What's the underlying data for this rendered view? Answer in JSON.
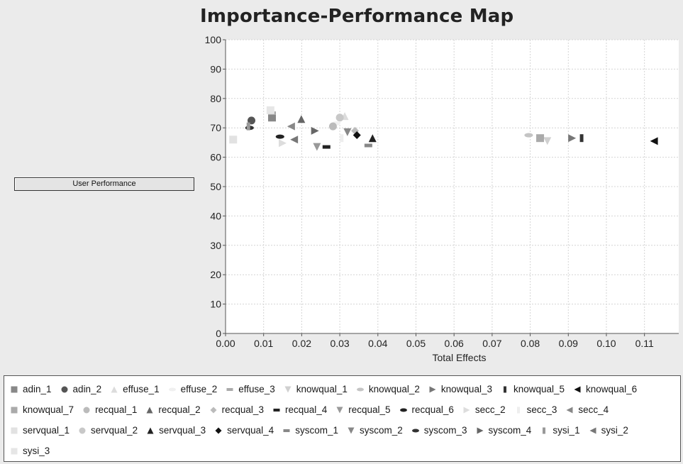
{
  "button_label": "User Performance",
  "chart_data": {
    "type": "scatter",
    "title": "Importance-Performance Map",
    "xlabel": "Total Effects",
    "ylabel": "",
    "xlim": [
      0,
      0.119
    ],
    "ylim": [
      0,
      100
    ],
    "x_ticks": [
      "0.00",
      "0.01",
      "0.02",
      "0.03",
      "0.04",
      "0.05",
      "0.06",
      "0.07",
      "0.08",
      "0.09",
      "0.10",
      "0.11"
    ],
    "y_ticks": [
      "0",
      "10",
      "20",
      "30",
      "40",
      "50",
      "60",
      "70",
      "80",
      "90",
      "100"
    ],
    "grid": true,
    "legend_position": "bottom",
    "series": [
      {
        "name": "adin_1",
        "marker": "square",
        "color": "#888888",
        "x": 0.0122,
        "y": 73.5
      },
      {
        "name": "adin_2",
        "marker": "circle",
        "color": "#555555",
        "x": 0.0068,
        "y": 72.5
      },
      {
        "name": "effuse_1",
        "marker": "triangle",
        "color": "#dcdcdc",
        "x": 0.0313,
        "y": 74.0
      },
      {
        "name": "effuse_2",
        "marker": "ellipse",
        "color": "#f0f0f0",
        "x": 0.029,
        "y": 71.5
      },
      {
        "name": "effuse_3",
        "marker": "bar",
        "color": "#aaaaaa",
        "x": 0.0122,
        "y": 75.0
      },
      {
        "name": "knowqual_1",
        "marker": "triangleDown",
        "color": "#d0d0d0",
        "x": 0.0845,
        "y": 65.5
      },
      {
        "name": "knowqual_2",
        "marker": "ellipse",
        "color": "#c4c4c4",
        "x": 0.0796,
        "y": 67.5
      },
      {
        "name": "knowqual_3",
        "marker": "triangleRight",
        "color": "#777777",
        "x": 0.091,
        "y": 66.5
      },
      {
        "name": "knowqual_5",
        "marker": "vbar",
        "color": "#333333",
        "x": 0.0935,
        "y": 66.5
      },
      {
        "name": "knowqual_6",
        "marker": "triangleLeft",
        "color": "#111111",
        "x": 0.1125,
        "y": 65.5
      },
      {
        "name": "knowqual_7",
        "marker": "square",
        "color": "#aaaaaa",
        "x": 0.0826,
        "y": 66.5
      },
      {
        "name": "recqual_1",
        "marker": "circle",
        "color": "#bbbbbb",
        "x": 0.0282,
        "y": 70.5
      },
      {
        "name": "recqual_2",
        "marker": "triangle",
        "color": "#666666",
        "x": 0.0199,
        "y": 73.0
      },
      {
        "name": "recqual_3",
        "marker": "diamond",
        "color": "#bbbbbb",
        "x": 0.034,
        "y": 69.0
      },
      {
        "name": "recqual_4",
        "marker": "bar",
        "color": "#222222",
        "x": 0.0265,
        "y": 63.5
      },
      {
        "name": "recqual_5",
        "marker": "triangleDown",
        "color": "#999999",
        "x": 0.024,
        "y": 63.5
      },
      {
        "name": "recqual_6",
        "marker": "ellipse",
        "color": "#222222",
        "x": 0.0143,
        "y": 67.0
      },
      {
        "name": "secc_2",
        "marker": "triangleRight",
        "color": "#dddddd",
        "x": 0.015,
        "y": 64.8
      },
      {
        "name": "secc_3",
        "marker": "vbar",
        "color": "#eeeeee",
        "x": 0.0305,
        "y": 66.5
      },
      {
        "name": "secc_4",
        "marker": "triangleLeft",
        "color": "#888888",
        "x": 0.0172,
        "y": 70.5
      },
      {
        "name": "servqual_1",
        "marker": "square",
        "color": "#e2e2e2",
        "x": 0.002,
        "y": 66.0
      },
      {
        "name": "servqual_2",
        "marker": "circle",
        "color": "#c8c8c8",
        "x": 0.03,
        "y": 73.5
      },
      {
        "name": "servqual_3",
        "marker": "triangle",
        "color": "#222222",
        "x": 0.0386,
        "y": 66.5
      },
      {
        "name": "servqual_4",
        "marker": "diamond",
        "color": "#111111",
        "x": 0.0345,
        "y": 67.5
      },
      {
        "name": "syscom_1",
        "marker": "bar",
        "color": "#888888",
        "x": 0.0375,
        "y": 64.0
      },
      {
        "name": "syscom_2",
        "marker": "triangleDown",
        "color": "#888888",
        "x": 0.032,
        "y": 68.5
      },
      {
        "name": "syscom_3",
        "marker": "ellipse",
        "color": "#333333",
        "x": 0.0063,
        "y": 70.0
      },
      {
        "name": "syscom_4",
        "marker": "triangleRight",
        "color": "#666666",
        "x": 0.0235,
        "y": 69.0
      },
      {
        "name": "sysi_1",
        "marker": "vbar",
        "color": "#999999",
        "x": 0.006,
        "y": 70.5
      },
      {
        "name": "sysi_2",
        "marker": "triangleLeft",
        "color": "#777777",
        "x": 0.018,
        "y": 66.0
      },
      {
        "name": "sysi_3",
        "marker": "square",
        "color": "#e6e6e6",
        "x": 0.0118,
        "y": 76.0
      }
    ]
  }
}
